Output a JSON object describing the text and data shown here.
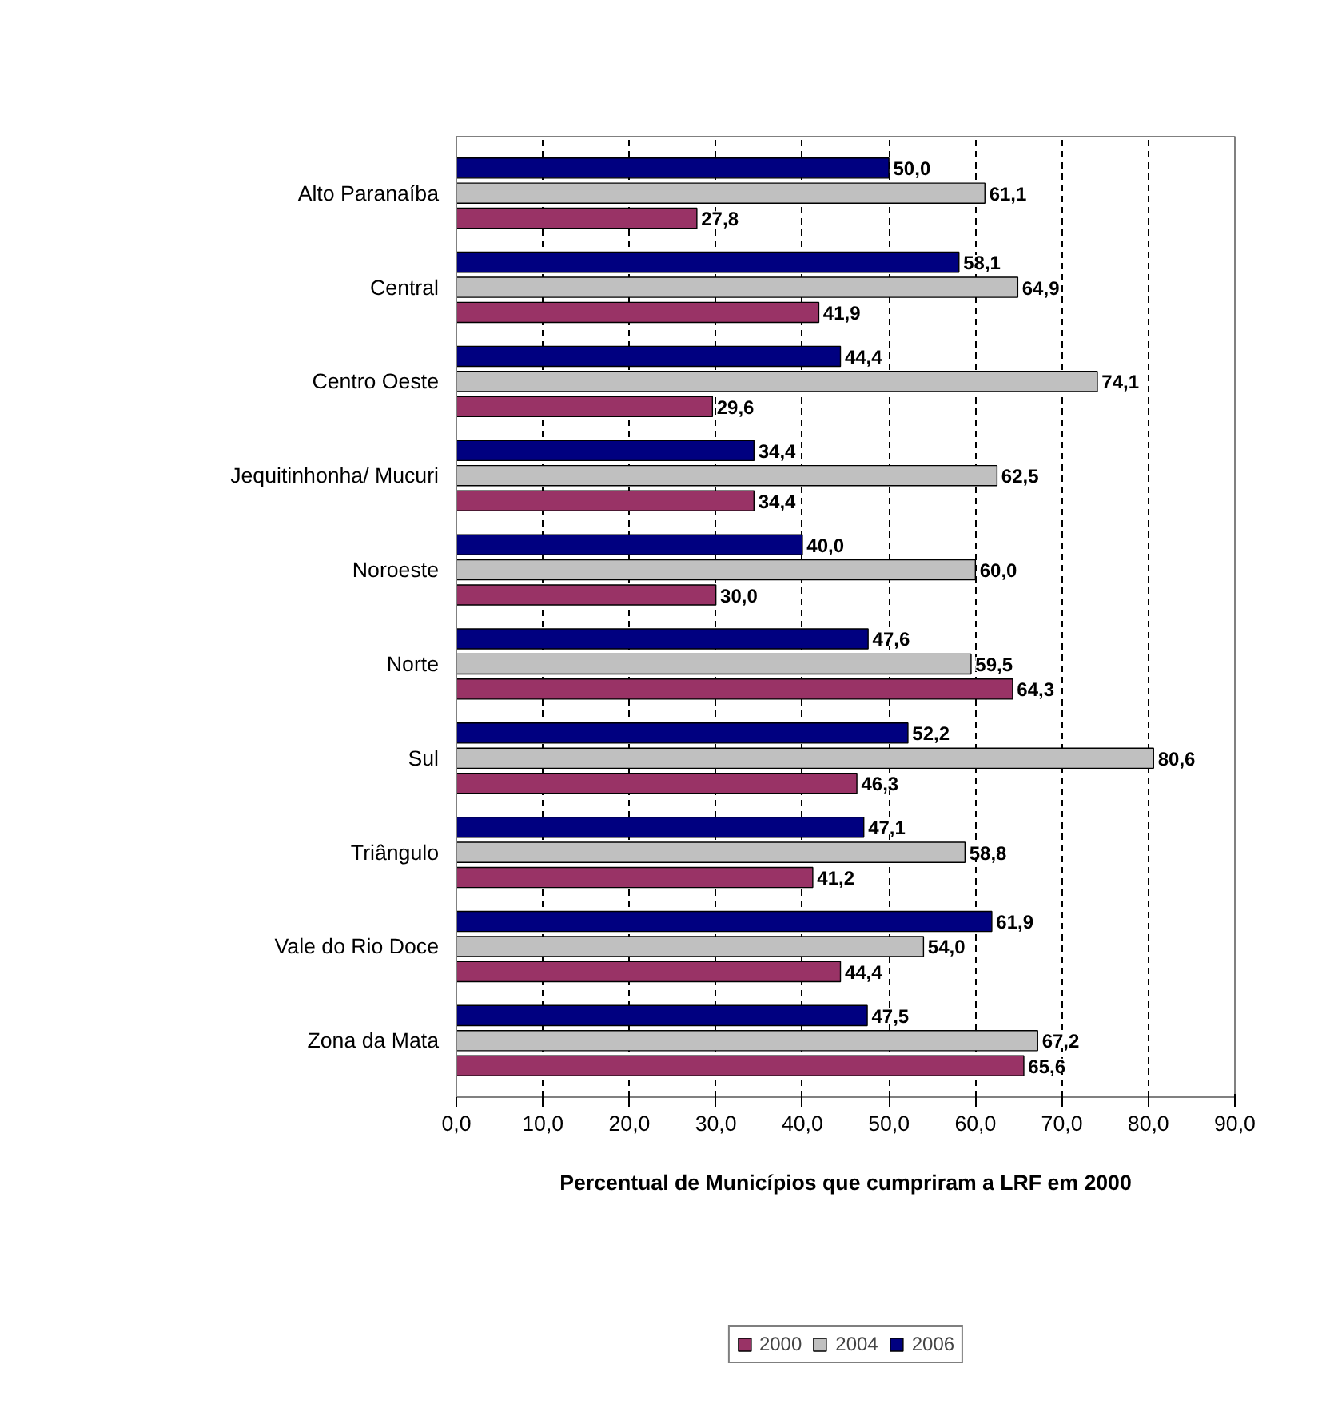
{
  "chart_data": {
    "type": "bar",
    "orientation": "horizontal",
    "title": "Percentual de Municípios que cumpriram a LRF em 2000",
    "categories": [
      "Alto Paranaíba",
      "Central",
      "Centro Oeste",
      "Jequitinhonha/ Mucuri",
      "Noroeste",
      "Norte",
      "Sul",
      "Triângulo",
      "Vale do Rio Doce",
      "Zona da Mata"
    ],
    "series": [
      {
        "name": "2000",
        "color": "#993366",
        "values": [
          27.8,
          41.9,
          29.6,
          34.4,
          30.0,
          64.3,
          46.3,
          41.2,
          44.4,
          65.6
        ],
        "value_labels": [
          "27,8",
          "41,9",
          "29,6",
          "34,4",
          "30,0",
          "64,3",
          "46,3",
          "41,2",
          "44,4",
          "65,6"
        ]
      },
      {
        "name": "2004",
        "color": "#c0c0c0",
        "values": [
          61.1,
          64.9,
          74.1,
          62.5,
          60.0,
          59.5,
          80.6,
          58.8,
          54.0,
          67.2
        ],
        "value_labels": [
          "61,1",
          "64,9",
          "74,1",
          "62,5",
          "60,0",
          "59,5",
          "80,6",
          "58,8",
          "54,0",
          "67,2"
        ]
      },
      {
        "name": "2006",
        "color": "#000080",
        "values": [
          50.0,
          58.1,
          44.4,
          34.4,
          40.0,
          47.6,
          52.2,
          47.1,
          61.9,
          47.5
        ],
        "value_labels": [
          "50,0",
          "58,1",
          "44,4",
          "34,4",
          "40,0",
          "47,6",
          "52,2",
          "47,1",
          "61,9",
          "47,5"
        ]
      }
    ],
    "xlim": [
      0,
      90
    ],
    "xticks": [
      {
        "value": 0,
        "label": "0,0"
      },
      {
        "value": 10,
        "label": "10,0"
      },
      {
        "value": 20,
        "label": "20,0"
      },
      {
        "value": 30,
        "label": "30,0"
      },
      {
        "value": 40,
        "label": "40,0"
      },
      {
        "value": 50,
        "label": "50,0"
      },
      {
        "value": 60,
        "label": "60,0"
      },
      {
        "value": 70,
        "label": "70,0"
      },
      {
        "value": 80,
        "label": "80,0"
      },
      {
        "value": 90,
        "label": "90,0"
      }
    ],
    "grid": "x",
    "legend": "bottom"
  }
}
